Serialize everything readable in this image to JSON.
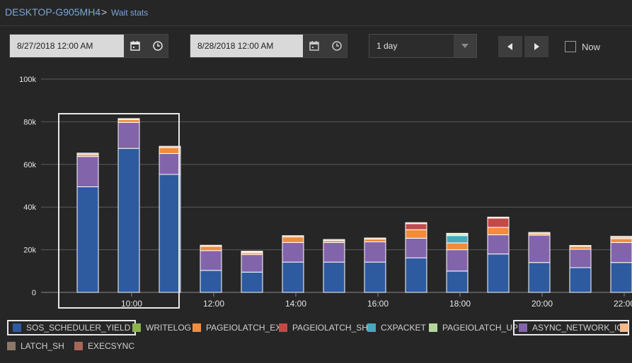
{
  "breadcrumb": {
    "root": "DESKTOP-G905MH4",
    "separator": ">",
    "current": "Wait stats"
  },
  "controls": {
    "start_date": "8/27/2018 12:00 AM",
    "end_date": "8/28/2018 12:00 AM",
    "range_value": "1 day",
    "now_label": "Now",
    "now_checked": false
  },
  "icons": {
    "calendar": "calendar-icon",
    "clock": "clock-icon",
    "dropdown": "chevron-down-icon",
    "prev": "triangle-left-icon",
    "next": "triangle-right-icon"
  },
  "legend": [
    {
      "name": "SOS_SCHEDULER_YIELD",
      "color": "#2e5aa0",
      "highlighted": true
    },
    {
      "name": "WRITELOG",
      "color": "#8bb34d",
      "highlighted": false
    },
    {
      "name": "PAGEIOLATCH_EX",
      "color": "#f08c3c",
      "highlighted": false
    },
    {
      "name": "PAGEIOLATCH_SH",
      "color": "#c44848",
      "highlighted": false
    },
    {
      "name": "CXPACKET",
      "color": "#46a9c0",
      "highlighted": false
    },
    {
      "name": "PAGEIOLATCH_UP",
      "color": "#b5d69a",
      "highlighted": false
    },
    {
      "name": "ASYNC_NETWORK_IO",
      "color": "#8264ab",
      "highlighted": true
    },
    {
      "name": "",
      "color": "#f5b98a",
      "highlighted": false
    },
    {
      "name": "LATCH_SH",
      "color": "#8c7868",
      "highlighted": false
    },
    {
      "name": "EXECSYNC",
      "color": "#a8655a",
      "highlighted": false
    }
  ],
  "chart_data": {
    "type": "bar",
    "stacked": true,
    "y_ticks": [
      "100k",
      "80k",
      "60k",
      "40k",
      "20k",
      "0"
    ],
    "ylim": [
      0,
      100000
    ],
    "x_ticks": [
      "10:00",
      "12:00",
      "14:00",
      "16:00",
      "18:00",
      "20:00",
      "22:00"
    ],
    "categories": [
      "09:00",
      "10:00",
      "11:00",
      "12:00",
      "13:00",
      "14:00",
      "15:00",
      "16:00",
      "17:00",
      "18:00",
      "19:00",
      "20:00",
      "21:00",
      "22:00"
    ],
    "series": [
      {
        "name": "SOS_SCHEDULER_YIELD",
        "color": "#2e5aa0",
        "values": [
          49500,
          67500,
          55300,
          10300,
          9500,
          14200,
          14200,
          14200,
          16200,
          10000,
          18000,
          14000,
          11600,
          14000
        ]
      },
      {
        "name": "ASYNC_NETWORK_IO",
        "color": "#8264ab",
        "values": [
          14200,
          12200,
          9800,
          9300,
          8200,
          9200,
          9200,
          9500,
          9200,
          10000,
          9000,
          12800,
          8600,
          9400
        ]
      },
      {
        "name": "PAGEIOLATCH_EX",
        "color": "#f08c3c",
        "values": [
          900,
          1300,
          2800,
          2000,
          800,
          2600,
          900,
          1300,
          4000,
          3200,
          3500,
          700,
          1300,
          1800
        ]
      },
      {
        "name": "PAGEIOLATCH_SH",
        "color": "#c44848",
        "values": [
          0,
          0,
          0,
          0,
          0,
          0,
          0,
          0,
          2800,
          0,
          4300,
          0,
          0,
          0
        ]
      },
      {
        "name": "CXPACKET",
        "color": "#46a9c0",
        "values": [
          0,
          0,
          0,
          0,
          0,
          0,
          0,
          0,
          0,
          3400,
          0,
          0,
          0,
          0
        ]
      },
      {
        "name": "PAGEIOLATCH_UP",
        "color": "#b5d69a",
        "values": [
          0,
          0,
          0,
          0,
          0,
          0,
          0,
          0,
          0,
          700,
          0,
          0,
          0,
          0
        ]
      },
      {
        "name": "",
        "color": "#f5b98a",
        "values": [
          700,
          500,
          600,
          500,
          500,
          600,
          500,
          500,
          500,
          400,
          500,
          600,
          500,
          600
        ]
      },
      {
        "name": "LATCH_SH",
        "color": "#8c7868",
        "values": [
          0,
          0,
          0,
          0,
          300,
          0,
          0,
          0,
          0,
          0,
          0,
          0,
          0,
          500
        ]
      }
    ],
    "grid": true,
    "legend_position": "bottom"
  }
}
